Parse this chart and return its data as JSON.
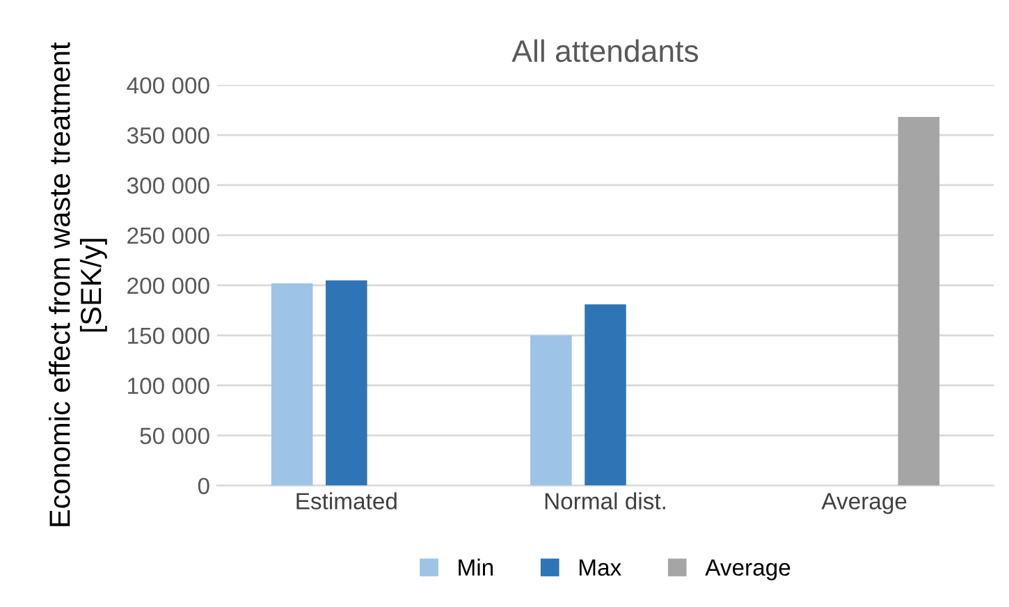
{
  "chart_data": {
    "type": "bar",
    "title": "All attendants",
    "ylabel": "Economic effect from waste treatment [SEK/y]",
    "categories": [
      "Estimated",
      "Normal dist.",
      "Average"
    ],
    "series": [
      {
        "name": "Min",
        "color": "#9dc3e6",
        "values": [
          202000,
          150000,
          null
        ]
      },
      {
        "name": "Max",
        "color": "#2e75b6",
        "values": [
          205000,
          181000,
          null
        ]
      },
      {
        "name": "Average",
        "color": "#a5a5a5",
        "values": [
          null,
          null,
          368000
        ]
      }
    ],
    "ylim": [
      0,
      400000
    ],
    "yticks": [
      {
        "value": 0,
        "label": "0"
      },
      {
        "value": 50000,
        "label": "50 000"
      },
      {
        "value": 100000,
        "label": "100 000"
      },
      {
        "value": 150000,
        "label": "150 000"
      },
      {
        "value": 200000,
        "label": "200 000"
      },
      {
        "value": 250000,
        "label": "250 000"
      },
      {
        "value": 300000,
        "label": "300 000"
      },
      {
        "value": 350000,
        "label": "350 000"
      },
      {
        "value": 400000,
        "label": "400 000"
      }
    ],
    "grid": "y",
    "legend": "bottom"
  }
}
